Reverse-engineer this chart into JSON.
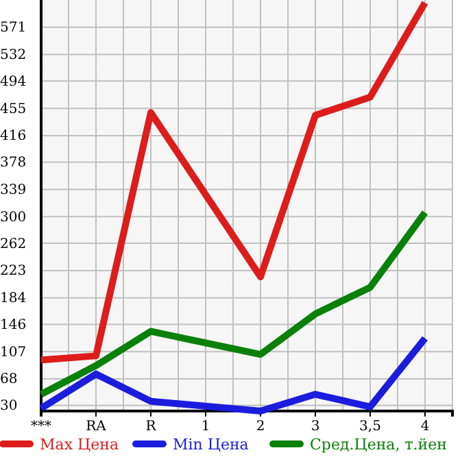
{
  "chart_data": {
    "type": "line",
    "categories": [
      "***",
      "RA",
      "R",
      "1",
      "2",
      "3",
      "3,5",
      "4"
    ],
    "series": [
      {
        "name": "Max Цена",
        "color": "#dd1c1c",
        "values": [
          95,
          101,
          449,
          null,
          214,
          445,
          471,
          606
        ]
      },
      {
        "name": "Min Цена",
        "color": "#1c1cdd",
        "values": [
          26,
          75,
          36,
          null,
          22,
          46,
          28,
          126
        ]
      },
      {
        "name": "Сред.Цена, т.йен",
        "color": "#0a800a",
        "values": [
          46,
          87,
          136,
          null,
          103,
          161,
          199,
          306
        ]
      }
    ],
    "ylim": [
      22,
      610
    ],
    "yticks": [
      30,
      68,
      107,
      146,
      184,
      223,
      262,
      300,
      339,
      378,
      416,
      455,
      494,
      532,
      571
    ],
    "grid": true,
    "legend": "bottom",
    "marker": "none",
    "line_style": "solid"
  }
}
